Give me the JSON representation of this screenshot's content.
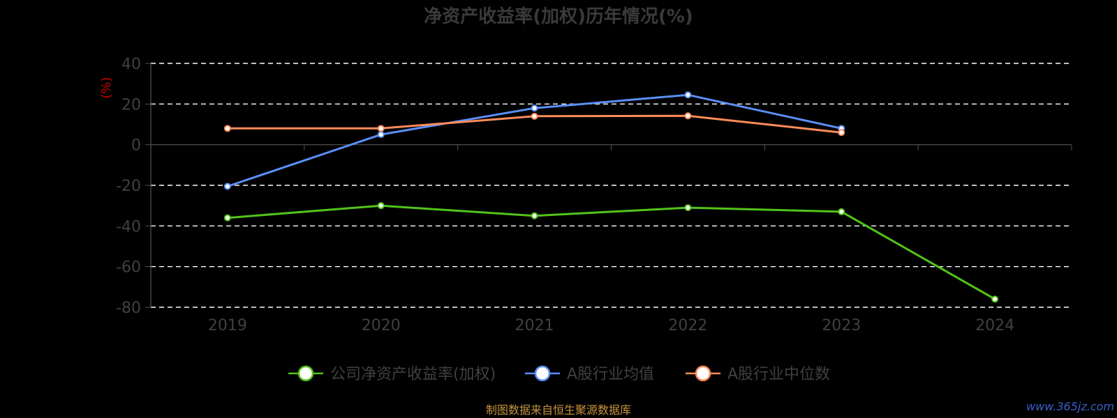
{
  "chart_data": {
    "type": "line",
    "title": "净资产收益率(加权)历年情况(%)",
    "ylabel": "(%)",
    "categories": [
      "2019",
      "2020",
      "2021",
      "2022",
      "2023",
      "2024"
    ],
    "ylim": [
      -80,
      40
    ],
    "yticks": [
      40,
      20,
      0,
      -20,
      -40,
      -60,
      -80
    ],
    "grid": true,
    "legend_position": "bottom",
    "series": [
      {
        "name": "公司净资产收益率(加权)",
        "color": "#52c41a",
        "values": [
          -36,
          -30,
          -35,
          -31,
          -33,
          -76
        ]
      },
      {
        "name": "A股行业均值",
        "color": "#5b8ff9",
        "values": [
          -20.5,
          5,
          18,
          24.5,
          8,
          null
        ]
      },
      {
        "name": "A股行业中位数",
        "color": "#ff8c5a",
        "values": [
          8,
          8,
          14,
          14.2,
          6,
          null
        ]
      }
    ]
  },
  "footer": {
    "source": "制图数据来自恒生聚源数据库",
    "watermark": "www.365jz.com"
  }
}
